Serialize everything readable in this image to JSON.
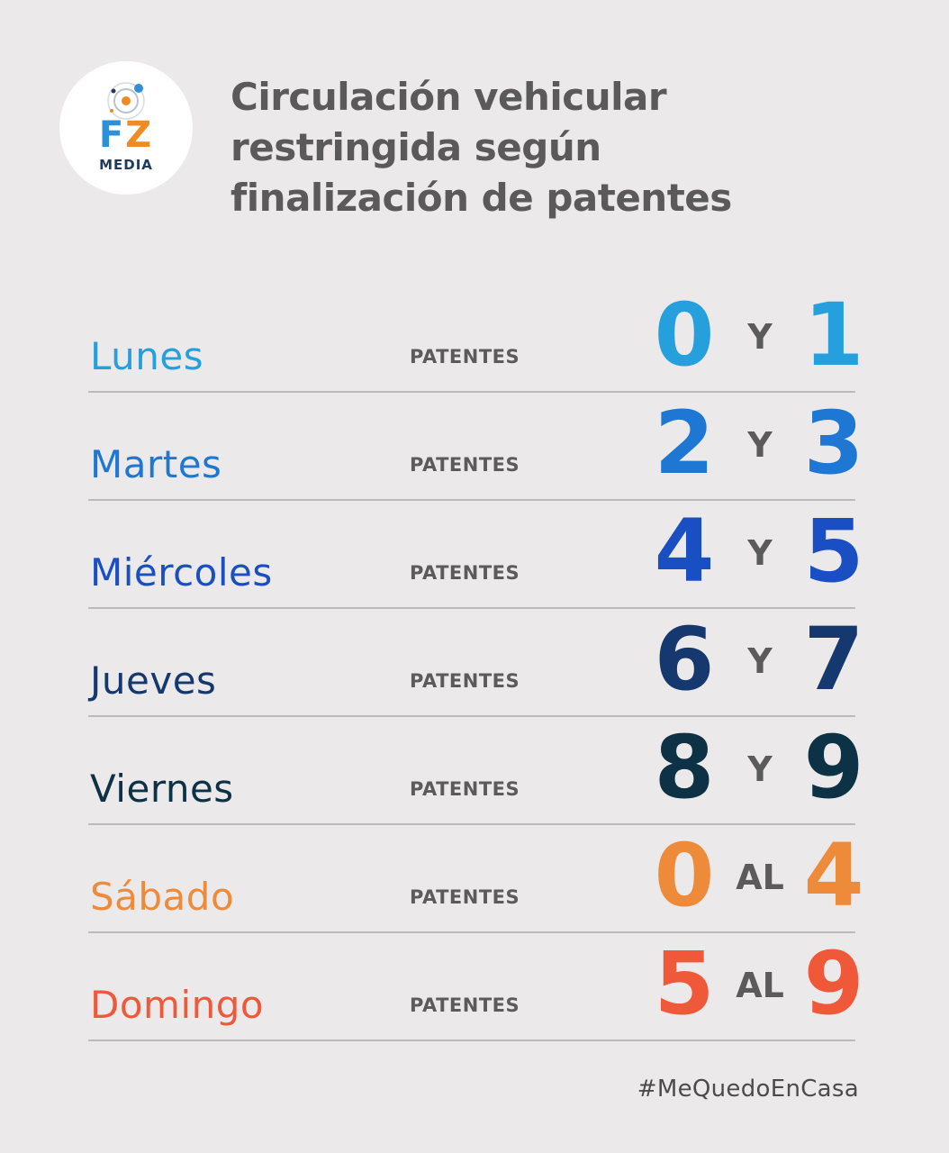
{
  "logo": {
    "fz_f": "F",
    "fz_z": "Z",
    "media": "MEDIA",
    "colors": {
      "f": "#2f8fd8",
      "z": "#f08a24",
      "media": "#1e3a5c"
    }
  },
  "title_lines": [
    "Circulación vehicular",
    "restringida según",
    "finalización de patentes"
  ],
  "rows": [
    {
      "day": "Lunes",
      "label": "PATENTES",
      "a": "0",
      "connector": "Y",
      "b": "1",
      "color": "#26a0dc"
    },
    {
      "day": "Martes",
      "label": "PATENTES",
      "a": "2",
      "connector": "Y",
      "b": "3",
      "color": "#1e78d3"
    },
    {
      "day": "Miércoles",
      "label": "PATENTES",
      "a": "4",
      "connector": "Y",
      "b": "5",
      "color": "#1a4fc4"
    },
    {
      "day": "Jueves",
      "label": "PATENTES",
      "a": "6",
      "connector": "Y",
      "b": "7",
      "color": "#15396f"
    },
    {
      "day": "Viernes",
      "label": "PATENTES",
      "a": "8",
      "connector": "Y",
      "b": "9",
      "color": "#0d3145"
    },
    {
      "day": "Sábado",
      "label": "PATENTES",
      "a": "0",
      "connector": "AL",
      "b": "4",
      "color": "#ee8b3a"
    },
    {
      "day": "Domingo",
      "label": "PATENTES",
      "a": "5",
      "connector": "AL",
      "b": "9",
      "color": "#ef5838"
    }
  ],
  "hashtag": "#MeQuedoEnCasa"
}
